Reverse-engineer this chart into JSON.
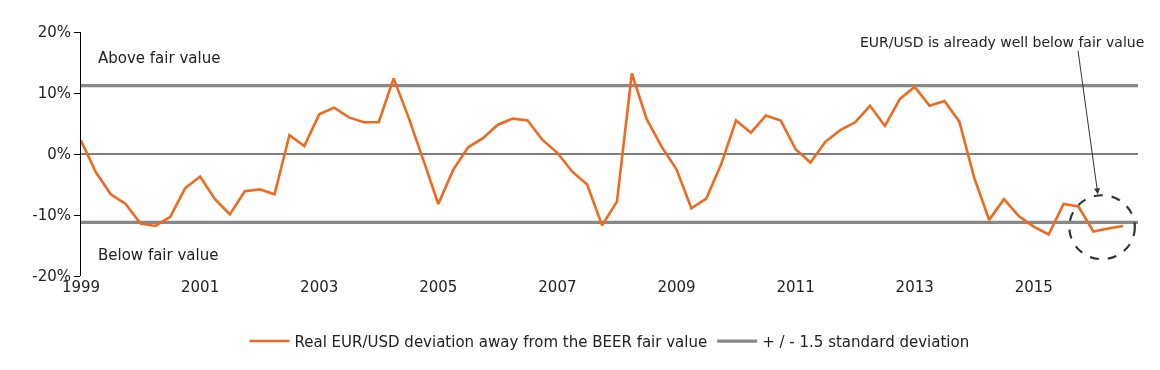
{
  "chart_data": {
    "type": "line",
    "x": [
      1999.0,
      1999.25,
      1999.5,
      1999.75,
      2000.0,
      2000.25,
      2000.5,
      2000.75,
      2001.0,
      2001.25,
      2001.5,
      2001.75,
      2002.0,
      2002.25,
      2002.5,
      2002.75,
      2003.0,
      2003.25,
      2003.5,
      2003.75,
      2004.0,
      2004.25,
      2004.5,
      2004.75,
      2005.0,
      2005.25,
      2005.5,
      2005.75,
      2006.0,
      2006.25,
      2006.5,
      2006.75,
      2007.0,
      2007.25,
      2007.5,
      2007.75,
      2008.0,
      2008.25,
      2008.5,
      2008.75,
      2009.0,
      2009.25,
      2009.5,
      2009.75,
      2010.0,
      2010.25,
      2010.5,
      2010.75,
      2011.0,
      2011.25,
      2011.5,
      2011.75,
      2012.0,
      2012.25,
      2012.5,
      2012.75,
      2013.0,
      2013.25,
      2013.5,
      2013.75,
      2014.0,
      2014.25,
      2014.5,
      2014.75,
      2015.0,
      2015.25,
      2015.5,
      2015.75,
      2016.0,
      2016.25,
      2016.5
    ],
    "series": [
      {
        "name": "Real EUR/USD deviation away from the BEER fair value",
        "color": "#ee6a1e",
        "values": [
          2.2,
          -3.0,
          -6.6,
          -8.2,
          -11.4,
          -11.8,
          -10.3,
          -5.6,
          -3.7,
          -7.4,
          -9.9,
          -6.1,
          -5.8,
          -6.6,
          3.1,
          1.3,
          6.5,
          7.6,
          6.0,
          5.2,
          5.2,
          12.4,
          6.0,
          -1.0,
          -8.2,
          -2.6,
          1.1,
          2.6,
          4.8,
          5.8,
          5.5,
          2.3,
          0.2,
          -2.9,
          -5.0,
          -11.7,
          -7.8,
          13.2,
          5.7,
          1.2,
          -2.5,
          -8.9,
          -7.3,
          -1.7,
          5.5,
          3.5,
          6.3,
          5.5,
          0.8,
          -1.4,
          2.0,
          3.9,
          5.2,
          7.9,
          4.6,
          9.0,
          11.0,
          7.9,
          8.7,
          5.3,
          -3.9,
          -10.8,
          -7.4,
          -10.2,
          -11.9,
          -13.2,
          -8.2,
          -8.6,
          -12.7,
          -12.2,
          -11.8
        ]
      }
    ],
    "xlim": [
      1999,
      2016.75
    ],
    "xticks": [
      1999,
      2001,
      2003,
      2005,
      2007,
      2009,
      2011,
      2013,
      2015
    ],
    "ylim": [
      -20,
      20
    ],
    "yticks": [
      {
        "value": -20,
        "label": "-20%"
      },
      {
        "value": -10,
        "label": "-10%"
      },
      {
        "value": 0,
        "label": "0%"
      },
      {
        "value": 10,
        "label": "10%"
      },
      {
        "value": 20,
        "label": "20%"
      }
    ],
    "ref_lines": [
      {
        "axis": "y",
        "value": 11.2,
        "label": "+ / - 1.5 standard deviation",
        "color": "#888888"
      },
      {
        "axis": "y",
        "value": -11.2,
        "color": "#888888"
      },
      {
        "axis": "y",
        "value": 0,
        "color": "#000000"
      }
    ],
    "annotations": [
      "Above fair value",
      "Below fair value",
      "EUR/USD is already well below fair value"
    ],
    "legend": "bottom",
    "marker": "none",
    "line_style": "solid"
  }
}
